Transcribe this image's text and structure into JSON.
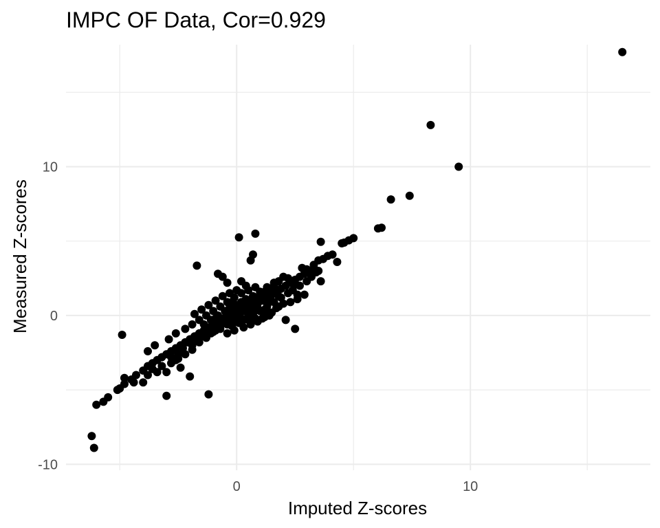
{
  "chart_data": {
    "type": "scatter",
    "title": "IMPC OF Data, Cor=0.929",
    "xlabel": "Imputed Z-scores",
    "ylabel": "Measured Z-scores",
    "xlim": [
      -7.3,
      17.7
    ],
    "ylim": [
      -10.4,
      18.2
    ],
    "x_ticks": [
      0,
      10
    ],
    "x_tick_labels": [
      "0",
      "10"
    ],
    "y_ticks": [
      -10,
      0,
      10
    ],
    "y_tick_labels": [
      "-10",
      "0",
      "10"
    ],
    "x_minor": [
      -5,
      5,
      15
    ],
    "y_minor": [
      -5,
      5,
      15
    ],
    "grid": true,
    "legend": "none",
    "point_color": "#000000",
    "points": [
      [
        16.5,
        17.7
      ],
      [
        8.3,
        12.8
      ],
      [
        9.5,
        10.0
      ],
      [
        7.4,
        8.05
      ],
      [
        6.6,
        7.8
      ],
      [
        6.2,
        5.9
      ],
      [
        6.05,
        5.85
      ],
      [
        5.0,
        5.2
      ],
      [
        4.8,
        5.05
      ],
      [
        4.6,
        4.9
      ],
      [
        4.5,
        4.85
      ],
      [
        3.6,
        4.95
      ],
      [
        4.1,
        4.1
      ],
      [
        3.9,
        4.0
      ],
      [
        3.7,
        3.8
      ],
      [
        3.5,
        3.7
      ],
      [
        4.3,
        3.6
      ],
      [
        3.3,
        3.4
      ],
      [
        3.0,
        3.1
      ],
      [
        2.8,
        3.2
      ],
      [
        3.5,
        3.0
      ],
      [
        3.6,
        2.3
      ],
      [
        2.5,
        2.1
      ],
      [
        2.2,
        2.5
      ],
      [
        2.0,
        2.6
      ],
      [
        1.8,
        2.3
      ],
      [
        1.6,
        2.0
      ],
      [
        1.4,
        1.8
      ],
      [
        1.2,
        1.6
      ],
      [
        1.0,
        1.4
      ],
      [
        0.8,
        1.2
      ],
      [
        0.6,
        1.0
      ],
      [
        0.4,
        0.8
      ],
      [
        0.2,
        0.6
      ],
      [
        0.0,
        0.4
      ],
      [
        -0.2,
        0.2
      ],
      [
        -0.4,
        0.0
      ],
      [
        -0.6,
        -0.2
      ],
      [
        -0.8,
        -0.4
      ],
      [
        -1.0,
        -0.6
      ],
      [
        -1.2,
        -0.8
      ],
      [
        -1.4,
        -1.0
      ],
      [
        -1.6,
        -1.2
      ],
      [
        -1.8,
        -1.4
      ],
      [
        -2.0,
        -1.6
      ],
      [
        -2.2,
        -1.8
      ],
      [
        -2.4,
        -2.0
      ],
      [
        -2.6,
        -2.2
      ],
      [
        -2.8,
        -2.4
      ],
      [
        -3.0,
        -2.6
      ],
      [
        -3.2,
        -2.8
      ],
      [
        -3.4,
        -3.0
      ],
      [
        -3.6,
        -3.2
      ],
      [
        -3.8,
        -3.4
      ],
      [
        -4.0,
        -3.7
      ],
      [
        -4.3,
        -4.0
      ],
      [
        -4.5,
        -4.3
      ],
      [
        -4.8,
        -4.6
      ],
      [
        -5.0,
        -4.9
      ],
      [
        -5.1,
        -5.0
      ],
      [
        -5.5,
        -5.5
      ],
      [
        -5.7,
        -5.8
      ],
      [
        -6.0,
        -6.0
      ],
      [
        -6.1,
        -8.9
      ],
      [
        -6.2,
        -8.1
      ],
      [
        -4.9,
        -1.3
      ],
      [
        -4.8,
        -4.2
      ],
      [
        -4.4,
        -4.5
      ],
      [
        -4.0,
        -4.5
      ],
      [
        -3.8,
        -4.0
      ],
      [
        -3.6,
        -3.6
      ],
      [
        -3.4,
        -3.8
      ],
      [
        -3.2,
        -3.4
      ],
      [
        -3.0,
        -3.8
      ],
      [
        -2.8,
        -3.2
      ],
      [
        -2.6,
        -3.0
      ],
      [
        -2.5,
        -2.6
      ],
      [
        -2.3,
        -2.2
      ],
      [
        -2.1,
        -1.8
      ],
      [
        -1.9,
        -2.0
      ],
      [
        -1.7,
        -1.6
      ],
      [
        -1.5,
        -1.4
      ],
      [
        -1.3,
        -1.5
      ],
      [
        -1.1,
        -1.2
      ],
      [
        -0.9,
        -1.0
      ],
      [
        -0.7,
        -0.7
      ],
      [
        -0.5,
        -0.5
      ],
      [
        -0.3,
        -0.3
      ],
      [
        -0.1,
        -0.1
      ],
      [
        0.1,
        0.1
      ],
      [
        0.3,
        0.3
      ],
      [
        0.5,
        0.5
      ],
      [
        0.7,
        0.6
      ],
      [
        0.9,
        0.8
      ],
      [
        1.1,
        1.0
      ],
      [
        1.3,
        1.2
      ],
      [
        1.5,
        1.4
      ],
      [
        1.7,
        1.6
      ],
      [
        1.9,
        1.8
      ],
      [
        2.1,
        2.0
      ],
      [
        2.3,
        2.2
      ],
      [
        2.5,
        2.4
      ],
      [
        2.7,
        2.6
      ],
      [
        2.9,
        2.8
      ],
      [
        3.1,
        3.0
      ],
      [
        3.3,
        3.2
      ],
      [
        -3.0,
        -5.4
      ],
      [
        -1.2,
        -5.3
      ],
      [
        -2.0,
        -4.1
      ],
      [
        -2.4,
        -3.5
      ],
      [
        0.1,
        5.25
      ],
      [
        0.8,
        5.5
      ],
      [
        0.7,
        4.1
      ],
      [
        0.6,
        3.7
      ],
      [
        -1.7,
        3.35
      ],
      [
        -0.8,
        2.8
      ],
      [
        -0.6,
        2.6
      ],
      [
        -0.4,
        2.2
      ],
      [
        0.2,
        2.3
      ],
      [
        0.4,
        2.0
      ],
      [
        2.5,
        -0.9
      ],
      [
        2.1,
        -0.3
      ],
      [
        1.8,
        0.6
      ],
      [
        1.5,
        0.2
      ],
      [
        1.2,
        -0.1
      ],
      [
        0.9,
        -0.4
      ],
      [
        0.6,
        -0.6
      ],
      [
        0.3,
        -0.8
      ],
      [
        -0.1,
        -1.0
      ],
      [
        -0.4,
        -1.2
      ],
      [
        -3.8,
        -2.4
      ],
      [
        -3.5,
        -2.0
      ],
      [
        -2.9,
        -1.6
      ],
      [
        -2.6,
        -1.2
      ],
      [
        -2.2,
        -0.9
      ],
      [
        -1.9,
        -0.6
      ],
      [
        -1.6,
        -0.3
      ],
      [
        -1.3,
        0.0
      ],
      [
        -1.0,
        0.3
      ],
      [
        -0.7,
        0.6
      ],
      [
        -0.4,
        0.9
      ],
      [
        -0.1,
        1.2
      ],
      [
        0.2,
        1.5
      ],
      [
        0.5,
        1.7
      ],
      [
        0.8,
        1.9
      ],
      [
        -1.8,
        0.1
      ],
      [
        -1.5,
        0.4
      ],
      [
        -1.2,
        0.7
      ],
      [
        -0.9,
        1.0
      ],
      [
        -0.6,
        1.3
      ],
      [
        -0.3,
        1.5
      ],
      [
        0.0,
        1.7
      ],
      [
        1.0,
        0.3
      ],
      [
        1.3,
        0.6
      ],
      [
        1.6,
        0.9
      ],
      [
        1.9,
        1.2
      ],
      [
        2.2,
        1.5
      ],
      [
        2.4,
        1.7
      ],
      [
        2.7,
        2.0
      ],
      [
        3.0,
        2.3
      ],
      [
        3.2,
        2.6
      ],
      [
        2.6,
        1.1
      ],
      [
        2.9,
        1.4
      ],
      [
        2.0,
        0.8
      ],
      [
        1.7,
        0.5
      ],
      [
        1.4,
        0.0
      ],
      [
        1.1,
        -0.2
      ],
      [
        0.8,
        -0.2
      ],
      [
        0.5,
        0.0
      ],
      [
        0.2,
        -0.2
      ],
      [
        -0.1,
        -0.4
      ],
      [
        -0.4,
        -0.6
      ],
      [
        -0.7,
        -0.9
      ],
      [
        -1.0,
        -1.1
      ],
      [
        -1.3,
        -1.3
      ],
      [
        -1.6,
        -1.8
      ],
      [
        -1.9,
        -2.3
      ],
      [
        -2.2,
        -2.6
      ],
      [
        -2.5,
        -2.9
      ],
      [
        -2.8,
        -2.8
      ],
      [
        0.3,
        -0.3
      ],
      [
        0.6,
        0.2
      ],
      [
        0.9,
        0.5
      ],
      [
        0.0,
        0.7
      ],
      [
        -0.2,
        0.9
      ],
      [
        0.4,
        1.1
      ],
      [
        0.7,
        1.3
      ],
      [
        1.0,
        1.6
      ],
      [
        1.3,
        1.9
      ],
      [
        1.6,
        2.2
      ],
      [
        -0.5,
        0.3
      ],
      [
        -0.8,
        0.0
      ],
      [
        -1.1,
        -0.3
      ],
      [
        -1.4,
        -0.6
      ],
      [
        -0.2,
        -0.7
      ],
      [
        0.1,
        -0.5
      ],
      [
        0.5,
        -0.3
      ],
      [
        0.2,
        0.9
      ],
      [
        -0.3,
        0.5
      ],
      [
        0.6,
        0.8
      ],
      [
        1.0,
        1.1
      ],
      [
        1.2,
        0.4
      ],
      [
        0.7,
        0.1
      ],
      [
        -0.6,
        -0.3
      ],
      [
        -0.9,
        -0.2
      ],
      [
        2.3,
        0.9
      ],
      [
        2.6,
        1.4
      ],
      [
        3.4,
        2.9
      ],
      [
        1.8,
        1.3
      ],
      [
        1.4,
        0.9
      ]
    ]
  }
}
